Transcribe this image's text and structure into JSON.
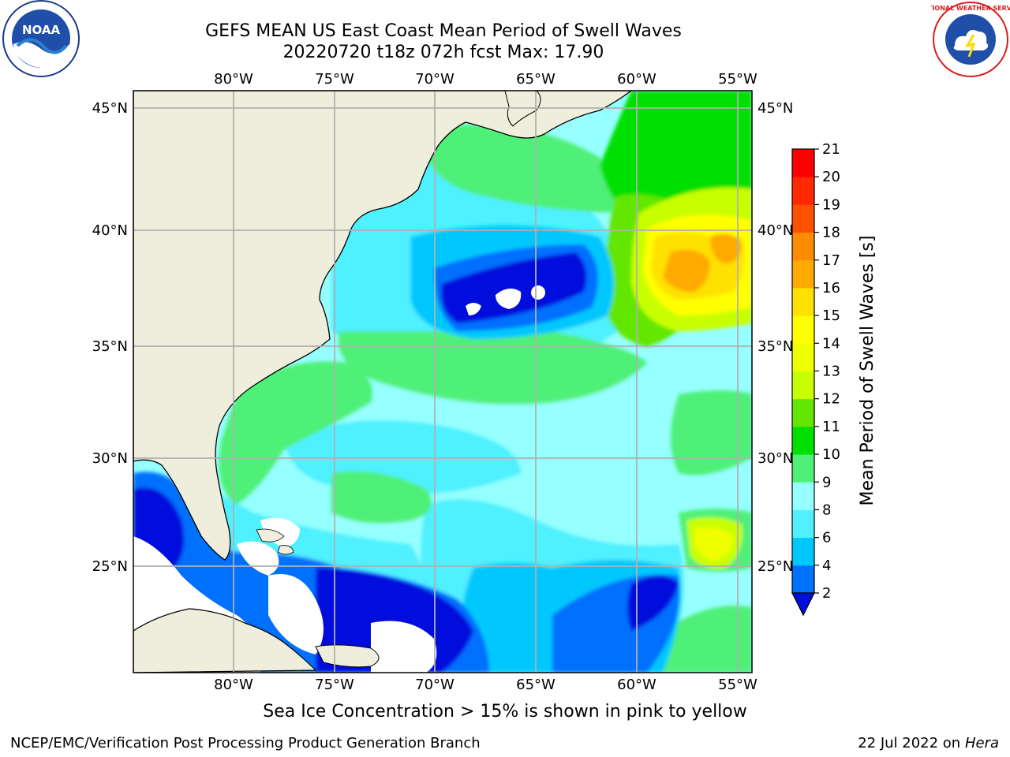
{
  "header": {
    "title_line1": "GEFS MEAN US East Coast Mean Period of Swell Waves",
    "title_line2": "20220720 t18z 072h fcst   Max: 17.90"
  },
  "logos": {
    "left": "noaa-logo",
    "left_text": "NOAA",
    "right": "national-weather-service-logo",
    "right_text": "NATIONAL WEATHER SERVICE"
  },
  "map": {
    "lon_labels": [
      "80°W",
      "75°W",
      "70°W",
      "65°W",
      "60°W",
      "55°W"
    ],
    "lat_labels": [
      "45°N",
      "40°N",
      "35°N",
      "30°N",
      "25°N"
    ],
    "land_color": "#efeedd",
    "gridline_color": "#b0b0b0"
  },
  "colorbar": {
    "label": "Mean Period of Swell Waves [s]",
    "ticks": [
      "2",
      "4",
      "6",
      "8",
      "9",
      "10",
      "11",
      "12",
      "13",
      "14",
      "15",
      "16",
      "17",
      "18",
      "19",
      "20",
      "21"
    ],
    "colors": [
      "#0070ff",
      "#00c8ff",
      "#50f0ff",
      "#96ffff",
      "#50f078",
      "#00e000",
      "#64e600",
      "#c8ff00",
      "#f0ff00",
      "#ffff00",
      "#ffe100",
      "#ffaa00",
      "#ff8c00",
      "#ff5000",
      "#ff2800",
      "#ff0000"
    ],
    "under_color": "#0010dc"
  },
  "caption": "Sea Ice Concentration > 15% is shown in pink to yellow",
  "footer": {
    "left": "NCEP/EMC/Verification Post Processing Product Generation Branch",
    "right_date": "22 Jul 2022 on ",
    "right_host": "Hera"
  }
}
